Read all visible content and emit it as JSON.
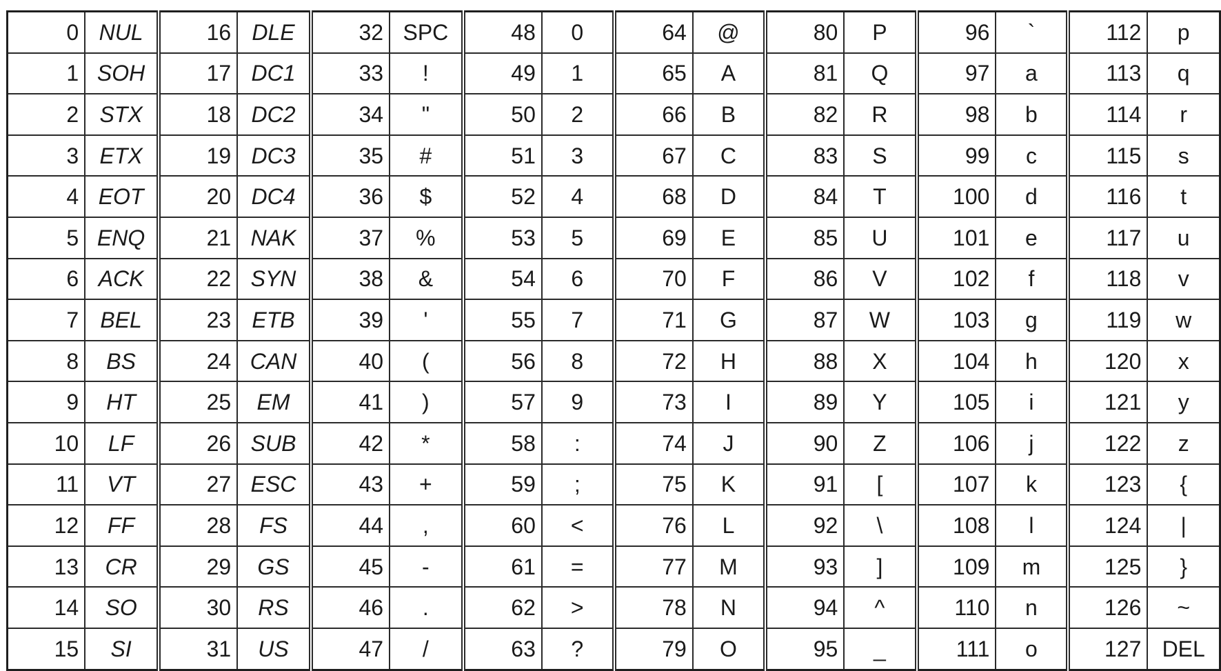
{
  "ascii_table": {
    "columns": [
      {
        "control": true,
        "rows": [
          {
            "code": "0",
            "char": "NUL"
          },
          {
            "code": "1",
            "char": "SOH"
          },
          {
            "code": "2",
            "char": "STX"
          },
          {
            "code": "3",
            "char": "ETX"
          },
          {
            "code": "4",
            "char": "EOT"
          },
          {
            "code": "5",
            "char": "ENQ"
          },
          {
            "code": "6",
            "char": "ACK"
          },
          {
            "code": "7",
            "char": "BEL"
          },
          {
            "code": "8",
            "char": "BS"
          },
          {
            "code": "9",
            "char": "HT"
          },
          {
            "code": "10",
            "char": "LF"
          },
          {
            "code": "11",
            "char": "VT"
          },
          {
            "code": "12",
            "char": "FF"
          },
          {
            "code": "13",
            "char": "CR"
          },
          {
            "code": "14",
            "char": "SO"
          },
          {
            "code": "15",
            "char": "SI"
          }
        ]
      },
      {
        "control": true,
        "rows": [
          {
            "code": "16",
            "char": "DLE"
          },
          {
            "code": "17",
            "char": "DC1"
          },
          {
            "code": "18",
            "char": "DC2"
          },
          {
            "code": "19",
            "char": "DC3"
          },
          {
            "code": "20",
            "char": "DC4"
          },
          {
            "code": "21",
            "char": "NAK"
          },
          {
            "code": "22",
            "char": "SYN"
          },
          {
            "code": "23",
            "char": "ETB"
          },
          {
            "code": "24",
            "char": "CAN"
          },
          {
            "code": "25",
            "char": "EM"
          },
          {
            "code": "26",
            "char": "SUB"
          },
          {
            "code": "27",
            "char": "ESC"
          },
          {
            "code": "28",
            "char": "FS"
          },
          {
            "code": "29",
            "char": "GS"
          },
          {
            "code": "30",
            "char": "RS"
          },
          {
            "code": "31",
            "char": "US"
          }
        ]
      },
      {
        "control": false,
        "rows": [
          {
            "code": "32",
            "char": "SPC"
          },
          {
            "code": "33",
            "char": "!"
          },
          {
            "code": "34",
            "char": "\""
          },
          {
            "code": "35",
            "char": "#"
          },
          {
            "code": "36",
            "char": "$"
          },
          {
            "code": "37",
            "char": "%"
          },
          {
            "code": "38",
            "char": "&"
          },
          {
            "code": "39",
            "char": "'"
          },
          {
            "code": "40",
            "char": "("
          },
          {
            "code": "41",
            "char": ")"
          },
          {
            "code": "42",
            "char": "*"
          },
          {
            "code": "43",
            "char": "+"
          },
          {
            "code": "44",
            "char": ","
          },
          {
            "code": "45",
            "char": "-"
          },
          {
            "code": "46",
            "char": "."
          },
          {
            "code": "47",
            "char": "/"
          }
        ]
      },
      {
        "control": false,
        "rows": [
          {
            "code": "48",
            "char": "0"
          },
          {
            "code": "49",
            "char": "1"
          },
          {
            "code": "50",
            "char": "2"
          },
          {
            "code": "51",
            "char": "3"
          },
          {
            "code": "52",
            "char": "4"
          },
          {
            "code": "53",
            "char": "5"
          },
          {
            "code": "54",
            "char": "6"
          },
          {
            "code": "55",
            "char": "7"
          },
          {
            "code": "56",
            "char": "8"
          },
          {
            "code": "57",
            "char": "9"
          },
          {
            "code": "58",
            "char": ":"
          },
          {
            "code": "59",
            "char": ";"
          },
          {
            "code": "60",
            "char": "<"
          },
          {
            "code": "61",
            "char": "="
          },
          {
            "code": "62",
            "char": ">"
          },
          {
            "code": "63",
            "char": "?"
          }
        ]
      },
      {
        "control": false,
        "rows": [
          {
            "code": "64",
            "char": "@"
          },
          {
            "code": "65",
            "char": "A"
          },
          {
            "code": "66",
            "char": "B"
          },
          {
            "code": "67",
            "char": "C"
          },
          {
            "code": "68",
            "char": "D"
          },
          {
            "code": "69",
            "char": "E"
          },
          {
            "code": "70",
            "char": "F"
          },
          {
            "code": "71",
            "char": "G"
          },
          {
            "code": "72",
            "char": "H"
          },
          {
            "code": "73",
            "char": "I"
          },
          {
            "code": "74",
            "char": "J"
          },
          {
            "code": "75",
            "char": "K"
          },
          {
            "code": "76",
            "char": "L"
          },
          {
            "code": "77",
            "char": "M"
          },
          {
            "code": "78",
            "char": "N"
          },
          {
            "code": "79",
            "char": "O"
          }
        ]
      },
      {
        "control": false,
        "rows": [
          {
            "code": "80",
            "char": "P"
          },
          {
            "code": "81",
            "char": "Q"
          },
          {
            "code": "82",
            "char": "R"
          },
          {
            "code": "83",
            "char": "S"
          },
          {
            "code": "84",
            "char": "T"
          },
          {
            "code": "85",
            "char": "U"
          },
          {
            "code": "86",
            "char": "V"
          },
          {
            "code": "87",
            "char": "W"
          },
          {
            "code": "88",
            "char": "X"
          },
          {
            "code": "89",
            "char": "Y"
          },
          {
            "code": "90",
            "char": "Z"
          },
          {
            "code": "91",
            "char": "["
          },
          {
            "code": "92",
            "char": "\\"
          },
          {
            "code": "93",
            "char": "]"
          },
          {
            "code": "94",
            "char": "^"
          },
          {
            "code": "95",
            "char": "_"
          }
        ]
      },
      {
        "control": false,
        "rows": [
          {
            "code": "96",
            "char": "`"
          },
          {
            "code": "97",
            "char": "a"
          },
          {
            "code": "98",
            "char": "b"
          },
          {
            "code": "99",
            "char": "c"
          },
          {
            "code": "100",
            "char": "d"
          },
          {
            "code": "101",
            "char": "e"
          },
          {
            "code": "102",
            "char": "f"
          },
          {
            "code": "103",
            "char": "g"
          },
          {
            "code": "104",
            "char": "h"
          },
          {
            "code": "105",
            "char": "i"
          },
          {
            "code": "106",
            "char": "j"
          },
          {
            "code": "107",
            "char": "k"
          },
          {
            "code": "108",
            "char": "l"
          },
          {
            "code": "109",
            "char": "m"
          },
          {
            "code": "110",
            "char": "n"
          },
          {
            "code": "111",
            "char": "o"
          }
        ]
      },
      {
        "control": false,
        "rows": [
          {
            "code": "112",
            "char": "p"
          },
          {
            "code": "113",
            "char": "q"
          },
          {
            "code": "114",
            "char": "r"
          },
          {
            "code": "115",
            "char": "s"
          },
          {
            "code": "116",
            "char": "t"
          },
          {
            "code": "117",
            "char": "u"
          },
          {
            "code": "118",
            "char": "v"
          },
          {
            "code": "119",
            "char": "w"
          },
          {
            "code": "120",
            "char": "x"
          },
          {
            "code": "121",
            "char": "y"
          },
          {
            "code": "122",
            "char": "z"
          },
          {
            "code": "123",
            "char": "{"
          },
          {
            "code": "124",
            "char": "|"
          },
          {
            "code": "125",
            "char": "}"
          },
          {
            "code": "126",
            "char": "~"
          },
          {
            "code": "127",
            "char": "DEL"
          }
        ]
      }
    ]
  }
}
